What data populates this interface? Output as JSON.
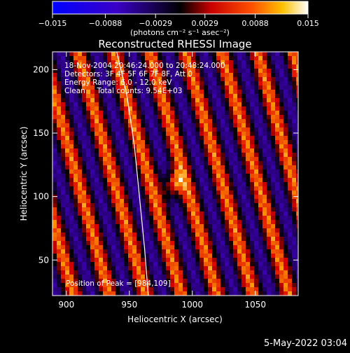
{
  "chart_data": {
    "type": "heatmap",
    "title": "Reconstructed RHESSI Image",
    "xlabel": "Heliocentric X (arcsec)",
    "ylabel": "Heliocentric Y (arcsec)",
    "xlim": [
      889,
      1084
    ],
    "ylim": [
      22,
      214
    ],
    "x_ticks": [
      900,
      950,
      1000,
      1050
    ],
    "y_ticks": [
      50,
      100,
      150,
      200
    ],
    "colorbar": {
      "range": [
        -0.015,
        0.015
      ],
      "tick_values": [
        -0.015,
        -0.0088,
        -0.0029,
        0.0029,
        0.0088,
        0.015
      ],
      "tick_labels": [
        "−0.015",
        "−0.0088",
        "−0.0029",
        "0.0029",
        "0.0088",
        "0.015"
      ],
      "unit_label": "(photons cm⁻² s⁻¹ asec⁻²)"
    },
    "annotations": [
      "18-Nov-2004 20:46:24.000 to 20:48:24.000",
      "Detectors: 3F 4F 5F 6F 7F 8F, Att 0",
      "Energy Range: 6.0 - 12.0 keV",
      "Clean     Total counts: 9.54E+03"
    ],
    "peak": {
      "label": "Position of Peak = [984,109]",
      "x": 984,
      "y": 109
    },
    "limb_curve": [
      [
        965,
        22
      ],
      [
        962,
        60
      ],
      [
        958,
        100
      ],
      [
        954,
        140
      ],
      [
        948,
        180
      ],
      [
        940,
        214
      ]
    ],
    "colors": {
      "background": "#000000",
      "text": "#ffffff"
    }
  },
  "footer": {
    "date": "5-May-2022 03:04"
  }
}
